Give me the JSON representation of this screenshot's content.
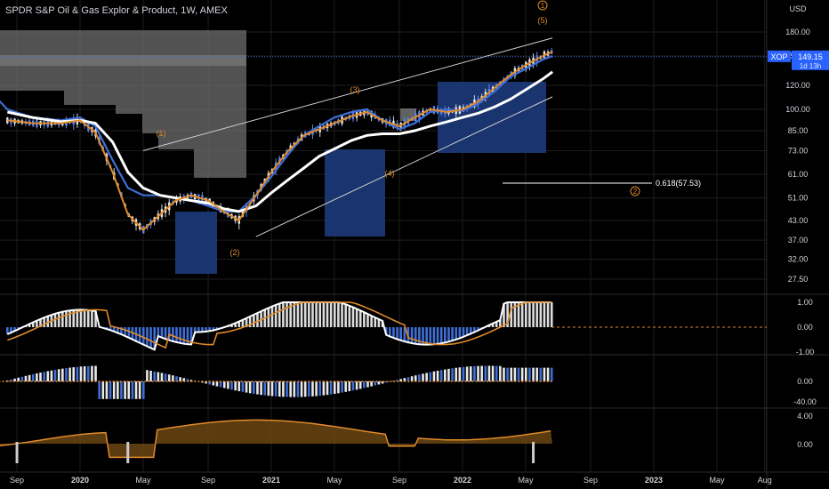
{
  "header": {
    "title": "SPDR S&P Oil & Gas Explor & Product, 1W, AMEX"
  },
  "colors": {
    "background": "#000000",
    "grid": "#1e1e1e",
    "text": "#d1d4dc",
    "blue": "#3f6fd8",
    "orange": "#e08a2a",
    "white": "#ffffff",
    "gray_zone": "#6e6e6e",
    "blue_zone": "#1c3a7a",
    "badge": "#2962ff"
  },
  "chart_data": {
    "type": "line",
    "currency_label": "USD",
    "y_axis_ticks": [
      "180.00",
      "150.00",
      "120.00",
      "100.00",
      "85.00",
      "73.00",
      "61.00",
      "51.00",
      "43.00",
      "37.00",
      "32.00",
      "27.50"
    ],
    "x_axis_ticks": [
      "Sep",
      "2020",
      "May",
      "Sep",
      "2021",
      "May",
      "Sep",
      "2022",
      "May",
      "Sep",
      "2023",
      "May",
      "Aug"
    ],
    "price_badge": {
      "symbol": "XOP",
      "value": "149.15",
      "countdown": "1d 13h"
    },
    "wave_labels": [
      "(1)",
      "(2)",
      "(3)",
      "(4)",
      "(5)"
    ],
    "circled_labels": [
      "1",
      "2"
    ],
    "fib_label": "0.618(57.53)",
    "price_series": {
      "ema_fast": [
        [
          2019.62,
          92
        ],
        [
          2019.75,
          90
        ],
        [
          2019.9,
          90
        ],
        [
          2020.0,
          92
        ],
        [
          2020.08,
          84
        ],
        [
          2020.17,
          62
        ],
        [
          2020.25,
          45
        ],
        [
          2020.33,
          40
        ],
        [
          2020.42,
          45
        ],
        [
          2020.5,
          50
        ],
        [
          2020.58,
          52
        ],
        [
          2020.67,
          50
        ],
        [
          2020.75,
          46
        ],
        [
          2020.83,
          43
        ],
        [
          2020.92,
          52
        ],
        [
          2021.0,
          62
        ],
        [
          2021.08,
          72
        ],
        [
          2021.17,
          82
        ],
        [
          2021.25,
          86
        ],
        [
          2021.33,
          90
        ],
        [
          2021.42,
          95
        ],
        [
          2021.5,
          98
        ],
        [
          2021.58,
          92
        ],
        [
          2021.67,
          88
        ],
        [
          2021.75,
          94
        ],
        [
          2021.83,
          100
        ],
        [
          2021.92,
          98
        ],
        [
          2022.0,
          100
        ],
        [
          2022.08,
          106
        ],
        [
          2022.17,
          118
        ],
        [
          2022.25,
          130
        ],
        [
          2022.33,
          140
        ],
        [
          2022.42,
          150
        ],
        [
          2022.47,
          155
        ]
      ],
      "ema_slow": [
        [
          2019.62,
          98
        ],
        [
          2019.75,
          94
        ],
        [
          2019.9,
          91
        ],
        [
          2020.0,
          92
        ],
        [
          2020.08,
          90
        ],
        [
          2020.17,
          78
        ],
        [
          2020.25,
          62
        ],
        [
          2020.33,
          55
        ],
        [
          2020.42,
          52
        ],
        [
          2020.5,
          51
        ],
        [
          2020.58,
          50
        ],
        [
          2020.67,
          49
        ],
        [
          2020.75,
          47
        ],
        [
          2020.83,
          46
        ],
        [
          2020.92,
          48
        ],
        [
          2021.0,
          53
        ],
        [
          2021.08,
          58
        ],
        [
          2021.17,
          64
        ],
        [
          2021.25,
          70
        ],
        [
          2021.33,
          74
        ],
        [
          2021.42,
          79
        ],
        [
          2021.5,
          82
        ],
        [
          2021.58,
          83
        ],
        [
          2021.67,
          83
        ],
        [
          2021.75,
          85
        ],
        [
          2021.83,
          88
        ],
        [
          2021.92,
          91
        ],
        [
          2022.0,
          94
        ],
        [
          2022.08,
          97
        ],
        [
          2022.17,
          102
        ],
        [
          2022.25,
          108
        ],
        [
          2022.33,
          116
        ],
        [
          2022.42,
          126
        ],
        [
          2022.47,
          133
        ]
      ],
      "ma_blue": [
        [
          2019.5,
          120
        ],
        [
          2019.62,
          100
        ],
        [
          2019.75,
          94
        ],
        [
          2019.9,
          92
        ],
        [
          2020.0,
          94
        ],
        [
          2020.08,
          88
        ],
        [
          2020.17,
          68
        ],
        [
          2020.25,
          55
        ],
        [
          2020.33,
          52
        ],
        [
          2020.42,
          52
        ],
        [
          2020.5,
          51
        ],
        [
          2020.58,
          50
        ],
        [
          2020.67,
          48
        ],
        [
          2020.75,
          46
        ],
        [
          2020.83,
          46
        ],
        [
          2020.92,
          52
        ],
        [
          2021.0,
          60
        ],
        [
          2021.08,
          70
        ],
        [
          2021.17,
          82
        ],
        [
          2021.25,
          88
        ],
        [
          2021.33,
          94
        ],
        [
          2021.42,
          98
        ],
        [
          2021.5,
          100
        ],
        [
          2021.58,
          92
        ],
        [
          2021.67,
          86
        ],
        [
          2021.75,
          90
        ],
        [
          2021.83,
          98
        ],
        [
          2021.92,
          100
        ],
        [
          2022.0,
          99
        ],
        [
          2022.08,
          104
        ],
        [
          2022.17,
          115
        ],
        [
          2022.25,
          128
        ],
        [
          2022.33,
          136
        ],
        [
          2022.42,
          146
        ],
        [
          2022.47,
          150
        ]
      ]
    },
    "channel_lines": [
      {
        "from": [
          2020.33,
          73
        ],
        "to": [
          2022.47,
          172
        ]
      },
      {
        "from": [
          2020.92,
          38
        ],
        "to": [
          2022.47,
          110
        ]
      }
    ],
    "indicator_1": {
      "y_ticks": [
        "1.00",
        "0.00",
        "-1.00"
      ]
    },
    "indicator_2": {
      "y_ticks": [
        "0.00",
        "-40.00"
      ]
    },
    "indicator_3": {
      "y_ticks": [
        "4.00",
        "0.00"
      ]
    }
  }
}
